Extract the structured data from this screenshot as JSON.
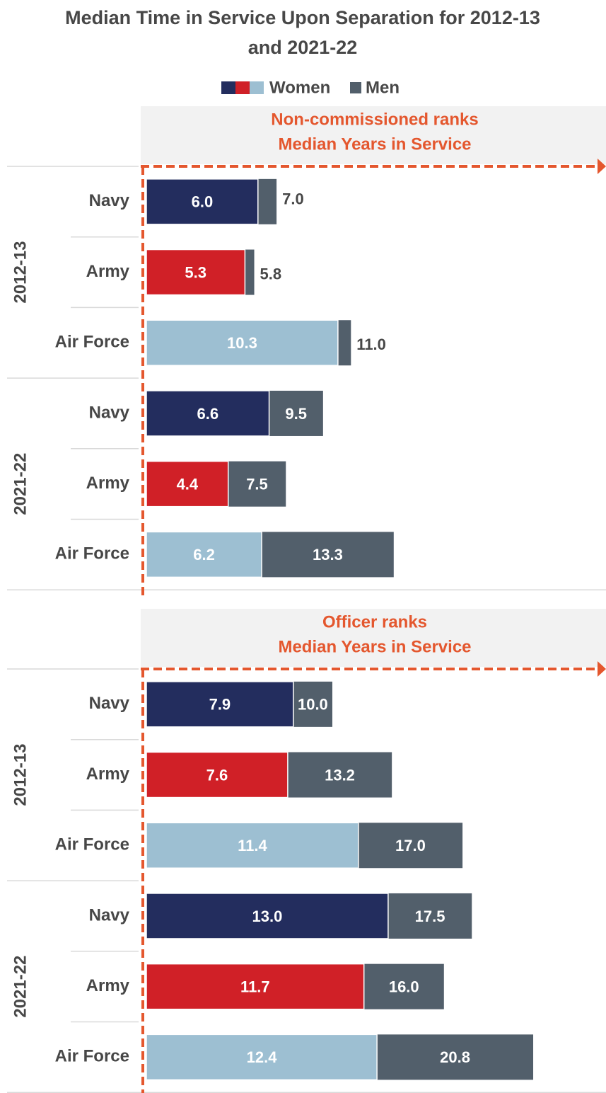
{
  "title": "Median Time in Service Upon Separation for 2012-13 and 2021-22",
  "chart_data": [
    {
      "type": "bar",
      "title": "Non-commissioned ranks",
      "subtitle": "Median Years in Service",
      "groups": [
        "2012-13",
        "2021-22"
      ],
      "categories": [
        "Navy",
        "Army",
        "Air Force",
        "Navy",
        "Army",
        "Air Force"
      ],
      "series": [
        {
          "name": "Women",
          "colors": [
            "#232d5e",
            "#d02027",
            "#9dbfd2",
            "#232d5e",
            "#d02027",
            "#9dbfd2"
          ],
          "values": [
            6.0,
            5.3,
            10.3,
            6.6,
            4.4,
            6.2
          ],
          "value_labels": [
            "6.0",
            "5.3",
            "10.3",
            "6.6",
            "4.4",
            "6.2"
          ]
        },
        {
          "name": "Men",
          "color": "#525f6b",
          "values": [
            7.0,
            5.8,
            11.0,
            9.5,
            7.5,
            13.3
          ],
          "value_labels": [
            "7.0",
            "5.8",
            "11.0",
            "9.5",
            "7.5",
            "13.3"
          ]
        }
      ]
    },
    {
      "type": "bar",
      "title": "Officer ranks",
      "subtitle": "Median Years in Service",
      "groups": [
        "2012-13",
        "2021-22"
      ],
      "categories": [
        "Navy",
        "Army",
        "Air Force",
        "Navy",
        "Army",
        "Air Force"
      ],
      "series": [
        {
          "name": "Women",
          "colors": [
            "#232d5e",
            "#d02027",
            "#9dbfd2",
            "#232d5e",
            "#d02027",
            "#9dbfd2"
          ],
          "values": [
            7.9,
            7.6,
            11.4,
            13.0,
            11.7,
            12.4
          ],
          "value_labels": [
            "7.9",
            "7.6",
            "11.4",
            "13.0",
            "11.7",
            "12.4"
          ]
        },
        {
          "name": "Men",
          "color": "#525f6b",
          "values": [
            10.0,
            13.2,
            17.0,
            17.5,
            16.0,
            20.8
          ],
          "value_labels": [
            "10.0",
            "13.2",
            "17.0",
            "17.5",
            "16.0",
            "20.8"
          ]
        }
      ]
    }
  ]
}
